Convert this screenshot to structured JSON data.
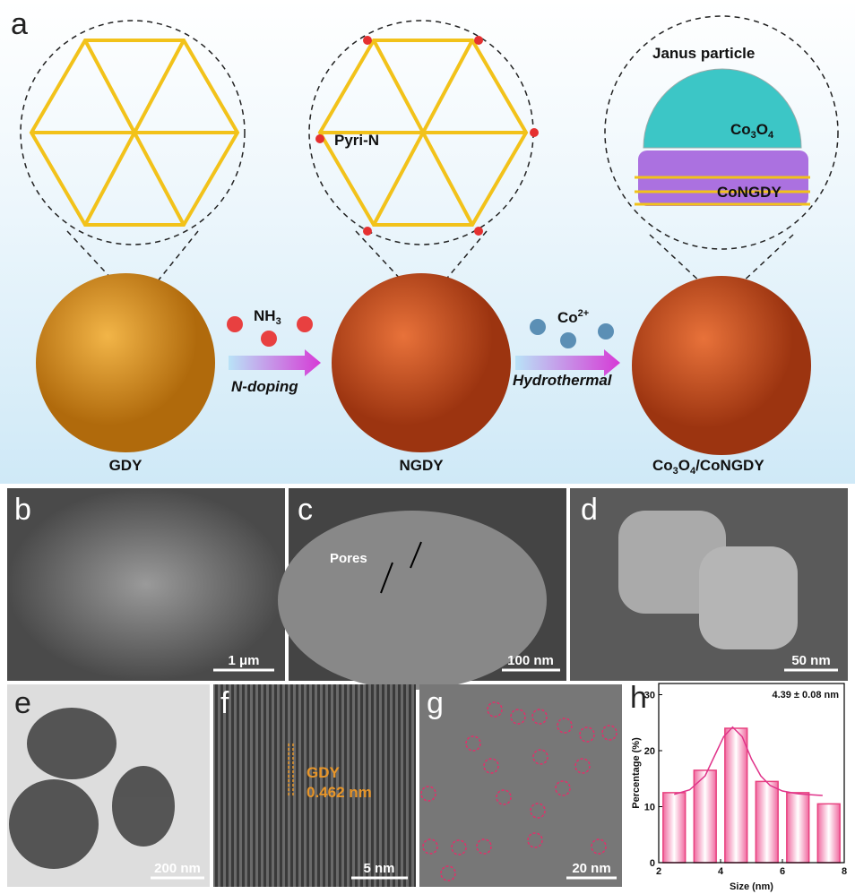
{
  "panel_a": {
    "label": "a",
    "janus_title": "Janus particle",
    "co3o4": [
      "Co",
      "3",
      "O",
      "4"
    ],
    "congdy_inset": "CoNGDY",
    "pyri_n": "Pyri-N",
    "nh3": [
      "NH",
      "3"
    ],
    "n_doping": "N-doping",
    "co2": [
      "Co",
      "2+"
    ],
    "hydrothermal": "Hydrothermal",
    "gdy": "GDY",
    "ngdy": "NGDY",
    "product": [
      "Co",
      "3",
      "O",
      "4",
      "/CoNGDY"
    ]
  },
  "panels": {
    "b": {
      "label": "b",
      "scale": "1 μm"
    },
    "c": {
      "label": "c",
      "pores": "Pores",
      "scale": "100 nm"
    },
    "d": {
      "label": "d",
      "scale": "50 nm"
    },
    "e": {
      "label": "e",
      "scale": "200 nm"
    },
    "f": {
      "label": "f",
      "material": "GDY",
      "spacing": "0.462 nm",
      "scale": "5 nm"
    },
    "g": {
      "label": "g",
      "scale": "20 nm"
    },
    "h": {
      "label": "h"
    }
  },
  "chart_data": {
    "type": "bar",
    "annotation": "4.39 ± 0.08 nm",
    "x_label": "Size (nm)",
    "y_label": "Percentage (%)",
    "x": [
      2.5,
      3.5,
      4.5,
      5.5,
      6.5,
      7.5
    ],
    "values": [
      12.5,
      16.5,
      24,
      14.5,
      12.5,
      10.5
    ],
    "color": "#e8417f",
    "fit": {
      "x": [
        2.5,
        3,
        3.5,
        3.8,
        4.1,
        4.39,
        4.7,
        5,
        5.3,
        5.6,
        6,
        6.5,
        7,
        7.3
      ],
      "values": [
        12.2,
        13,
        15.5,
        19,
        22.5,
        24.2,
        22.5,
        18.5,
        15.5,
        13.8,
        12.8,
        12.3,
        12.1,
        12
      ],
      "color": "#e0348a"
    },
    "xlim": [
      2,
      8
    ],
    "ylim": [
      0,
      32
    ],
    "xticks": [
      2,
      4,
      6,
      8
    ],
    "yticks": [
      0,
      10,
      20,
      30
    ]
  }
}
